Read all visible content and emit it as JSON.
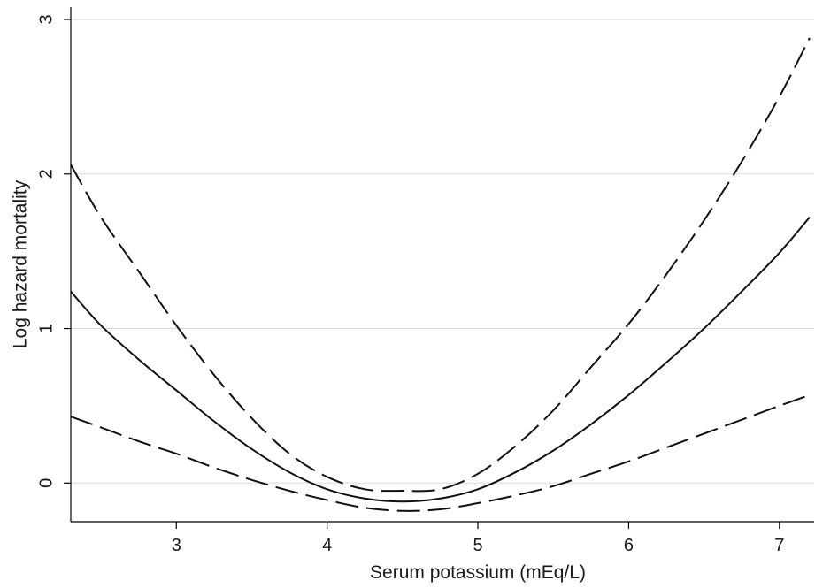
{
  "chart_data": {
    "type": "line",
    "title": "",
    "xlabel": "Serum potassium (mEq/L)",
    "ylabel": "Log hazard mortality",
    "xlim": [
      2.3,
      7.23
    ],
    "ylim": [
      -0.25,
      3.08
    ],
    "xticks": [
      3,
      4,
      5,
      6,
      7
    ],
    "yticks": [
      0,
      1,
      2,
      3
    ],
    "grid": "horizontal",
    "legend": "none",
    "colors": {
      "line": "#111111",
      "grid": "#d9d9d9",
      "axis": "#000000"
    },
    "series": [
      {
        "style": "solid",
        "x": [
          2.3,
          2.5,
          2.75,
          3.0,
          3.25,
          3.5,
          3.75,
          4.0,
          4.25,
          4.5,
          4.75,
          5.0,
          5.25,
          5.5,
          5.75,
          6.0,
          6.25,
          6.5,
          6.75,
          7.0,
          7.2
        ],
        "y": [
          1.24,
          1.02,
          0.8,
          0.6,
          0.4,
          0.22,
          0.07,
          -0.04,
          -0.1,
          -0.12,
          -0.1,
          -0.04,
          0.07,
          0.21,
          0.38,
          0.57,
          0.78,
          1.0,
          1.24,
          1.49,
          1.72
        ]
      },
      {
        "style": "dashed",
        "x": [
          2.3,
          2.5,
          2.75,
          3.0,
          3.25,
          3.5,
          3.75,
          4.0,
          4.25,
          4.5,
          4.75,
          5.0,
          5.25,
          5.5,
          5.75,
          6.0,
          6.25,
          6.5,
          6.75,
          7.0,
          7.2
        ],
        "y": [
          2.06,
          1.72,
          1.37,
          1.02,
          0.7,
          0.42,
          0.19,
          0.04,
          -0.04,
          -0.05,
          -0.04,
          0.06,
          0.24,
          0.47,
          0.75,
          1.03,
          1.35,
          1.7,
          2.08,
          2.5,
          2.88
        ]
      },
      {
        "style": "dashed",
        "x": [
          2.3,
          2.5,
          2.75,
          3.0,
          3.25,
          3.5,
          3.75,
          4.0,
          4.25,
          4.5,
          4.75,
          5.0,
          5.25,
          5.5,
          5.75,
          6.0,
          6.25,
          6.5,
          6.75,
          7.0,
          7.2
        ],
        "y": [
          0.43,
          0.36,
          0.27,
          0.19,
          0.1,
          0.02,
          -0.05,
          -0.11,
          -0.16,
          -0.18,
          -0.17,
          -0.13,
          -0.08,
          -0.02,
          0.06,
          0.14,
          0.23,
          0.32,
          0.41,
          0.5,
          0.57
        ]
      }
    ]
  }
}
